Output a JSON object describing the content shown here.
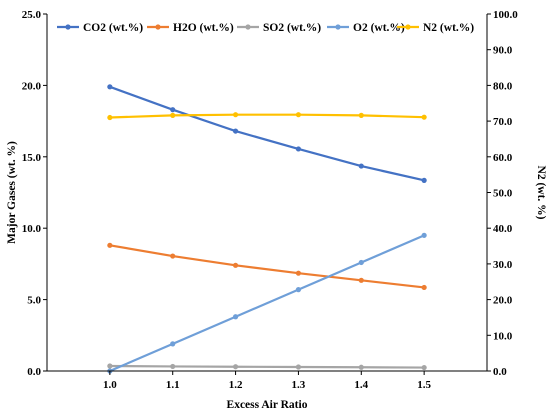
{
  "chart_data": {
    "type": "line",
    "title": "",
    "xlabel": "Excess Air Ratio",
    "ylabel": "Major Gases (wt. %)",
    "y2label": "N2 (wt. %)",
    "x": [
      1.0,
      1.1,
      1.2,
      1.3,
      1.4,
      1.5
    ],
    "x_tick_labels": [
      "1.0",
      "1.1",
      "1.2",
      "1.3",
      "1.4",
      "1.5"
    ],
    "xlim": [
      0.9,
      1.6
    ],
    "ylim": [
      0,
      25
    ],
    "y_ticks": [
      0,
      5,
      10,
      15,
      20,
      25
    ],
    "y_tick_labels": [
      "0.0",
      "5.0",
      "10.0",
      "15.0",
      "20.0",
      "25.0"
    ],
    "y2lim": [
      0,
      100
    ],
    "y2_ticks": [
      0,
      10,
      20,
      30,
      40,
      50,
      60,
      70,
      80,
      90,
      100
    ],
    "y2_tick_labels": [
      "0.0",
      "10.0",
      "20.0",
      "30.0",
      "40.0",
      "50.0",
      "60.0",
      "70.0",
      "80.0",
      "90.0",
      "100.0"
    ],
    "grid": false,
    "legend_position": "top",
    "series": [
      {
        "name": "CO2 (wt.%)",
        "axis": "left",
        "color": "#4472C4",
        "values": [
          19.9,
          18.3,
          16.8,
          15.55,
          14.35,
          13.35
        ]
      },
      {
        "name": "H2O (wt.%)",
        "axis": "left",
        "color": "#ED7D31",
        "values": [
          8.8,
          8.05,
          7.4,
          6.85,
          6.35,
          5.85
        ]
      },
      {
        "name": "SO2 (wt.%)",
        "axis": "left",
        "color": "#A5A5A5",
        "values": [
          0.35,
          0.32,
          0.3,
          0.28,
          0.26,
          0.24
        ]
      },
      {
        "name": "O2 (wt.%)",
        "axis": "left",
        "color": "#6F9FD8",
        "values": [
          0.0,
          1.9,
          3.8,
          5.7,
          7.6,
          9.5
        ]
      },
      {
        "name": "N2 (wt.%)",
        "axis": "right",
        "color": "#FFC000",
        "values": [
          71.0,
          71.6,
          71.8,
          71.8,
          71.6,
          71.1
        ]
      }
    ]
  }
}
